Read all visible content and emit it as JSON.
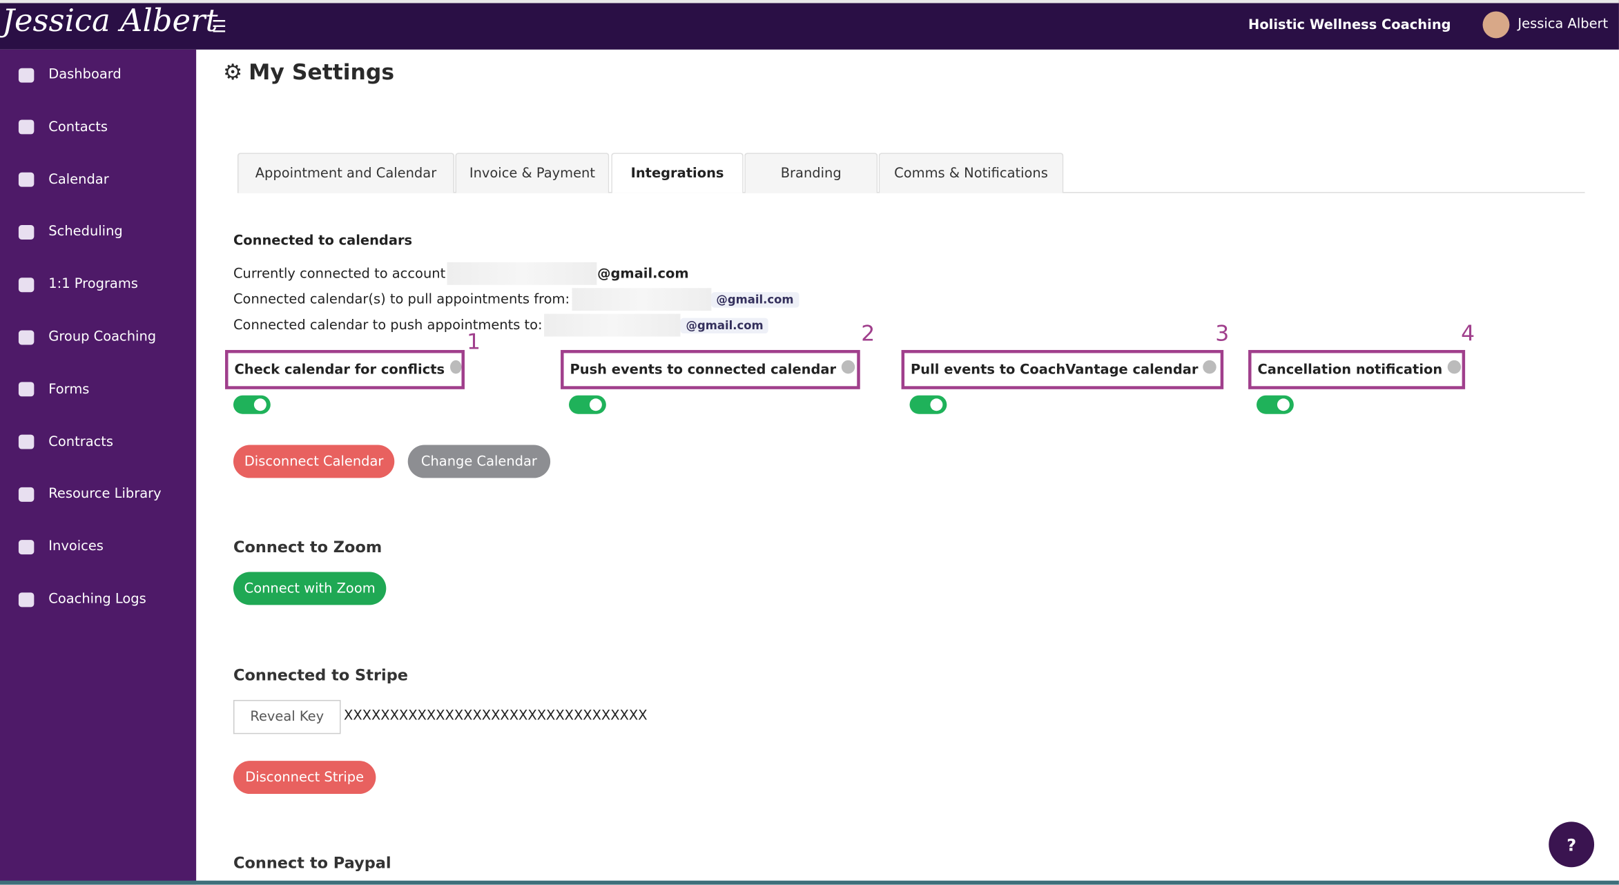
{
  "header": {
    "brand": "Jessica Albert",
    "org": "Holistic Wellness Coaching",
    "user": "Jessica Albert"
  },
  "sidebar": {
    "items": [
      "Dashboard",
      "Contacts",
      "Calendar",
      "Scheduling",
      "1:1 Programs",
      "Group Coaching",
      "Forms",
      "Contracts",
      "Resource Library",
      "Invoices",
      "Coaching Logs"
    ]
  },
  "page": {
    "title": "My Settings",
    "tabs": {
      "items": [
        "Appointment and Calendar",
        "Invoice & Payment",
        "Integrations",
        "Branding",
        "Comms & Notifications"
      ],
      "active": 2
    },
    "calendars": {
      "heading": "Connected to calendars",
      "lines": [
        {
          "label": "Currently connected to account",
          "email": "@gmail.com"
        },
        {
          "label": "Connected calendar(s) to pull appointments from:",
          "email": "@gmail.com"
        },
        {
          "label": "Connected calendar to push appointments to:",
          "email": "@gmail.com"
        }
      ],
      "toggles": [
        {
          "number": "1",
          "label": "Check calendar for conflicts",
          "on": true
        },
        {
          "number": "2",
          "label": "Push events to connected calendar",
          "on": true
        },
        {
          "number": "3",
          "label": "Pull events to CoachVantage calendar",
          "on": true
        },
        {
          "number": "4",
          "label": "Cancellation notification",
          "on": true
        }
      ],
      "disconnect": "Disconnect Calendar",
      "change": "Change Calendar"
    },
    "zoom": {
      "heading": "Connect to Zoom",
      "button": "Connect with Zoom"
    },
    "stripe": {
      "heading": "Connected to Stripe",
      "reveal": "Reveal Key",
      "key": "XXXXXXXXXXXXXXXXXXXXXXXXXXXXXXXXX",
      "disconnect": "Disconnect Stripe"
    },
    "paypal": {
      "heading": "Connect to Paypal"
    },
    "help": "?"
  }
}
